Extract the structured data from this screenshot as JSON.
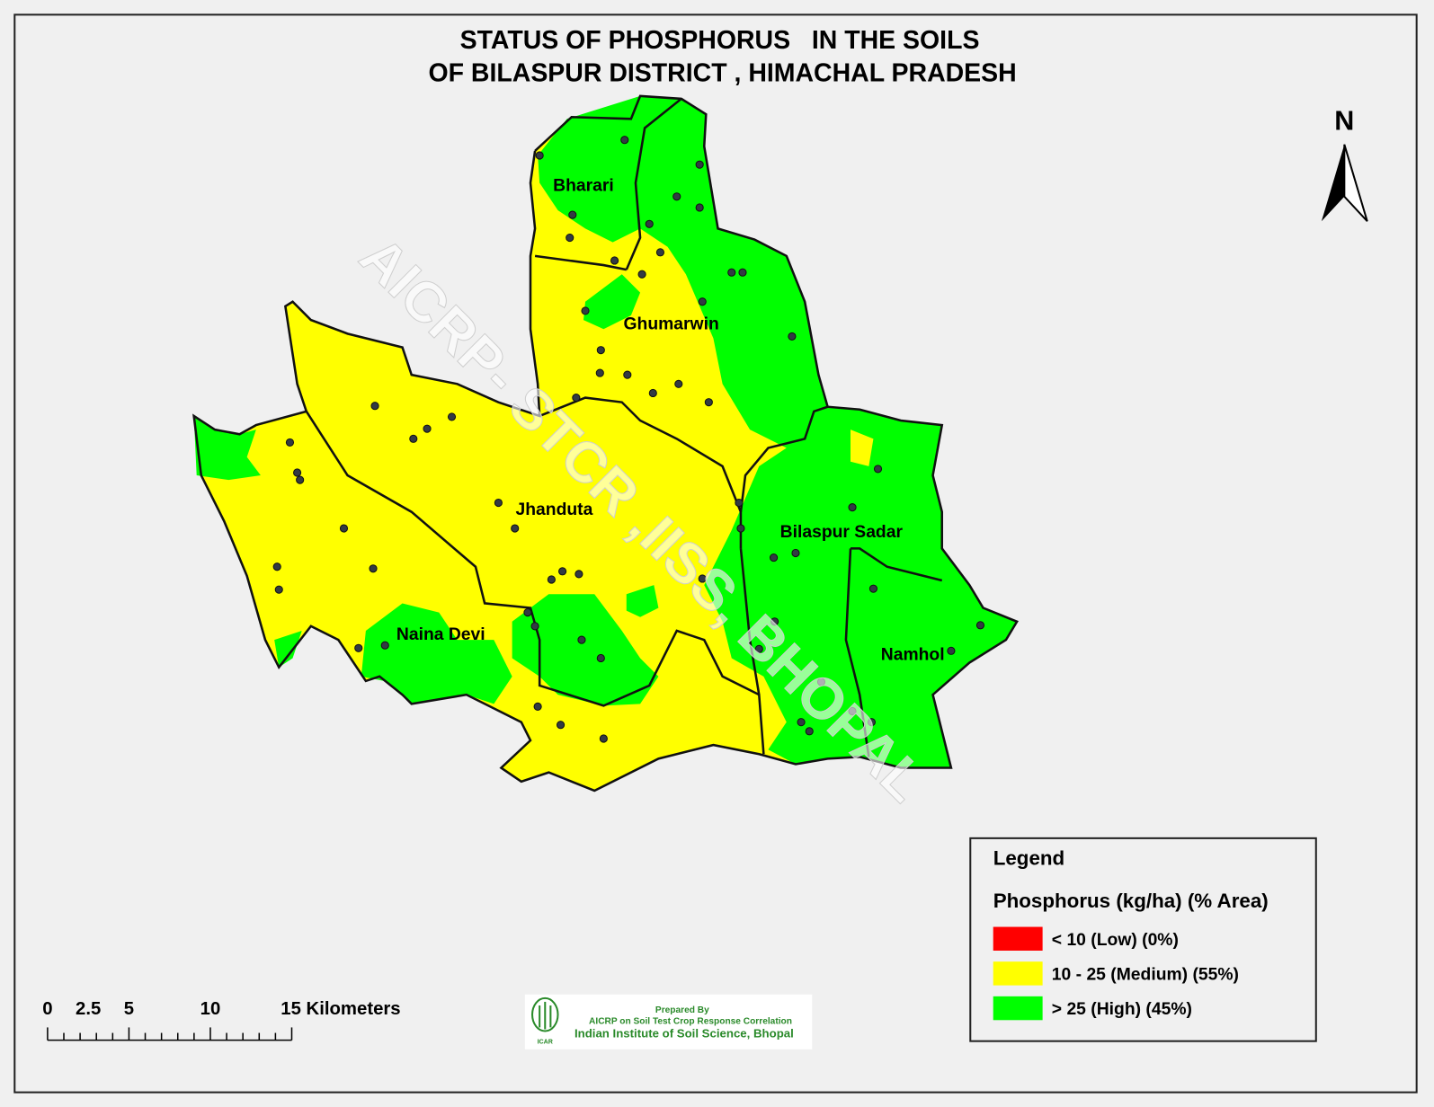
{
  "title": {
    "line1": "STATUS OF PHOSPHORUS   IN THE SOILS",
    "line2": "OF BILASPUR DISTRICT , HIMACHAL PRADESH"
  },
  "north": "N",
  "watermark": "AICRP- STCR ,IISS, BHOPAL",
  "places": [
    "Bharari",
    "Ghumarwin",
    "Jhanduta",
    "Bilaspur Sadar",
    "Naina Devi",
    "Namhol"
  ],
  "legend": {
    "title": "Legend",
    "subtitle": "Phosphorus (kg/ha) (% Area)",
    "items": [
      {
        "label": "< 10 (Low) (0%)",
        "color": "#ff0000"
      },
      {
        "label": "10 - 25 (Medium) (55%)",
        "color": "#ffff00"
      },
      {
        "label": "> 25  (High) (45%)",
        "color": "#00ff00"
      }
    ]
  },
  "scale": {
    "labels": [
      "0",
      "2.5",
      "5",
      "10",
      "15 Kilometers"
    ]
  },
  "credit": {
    "line1": "Prepared By",
    "line2": "AICRP on Soil Test Crop Response Correlation",
    "line3": "Indian Institute of Soil Science, Bhopal",
    "logo": "ICAR"
  }
}
